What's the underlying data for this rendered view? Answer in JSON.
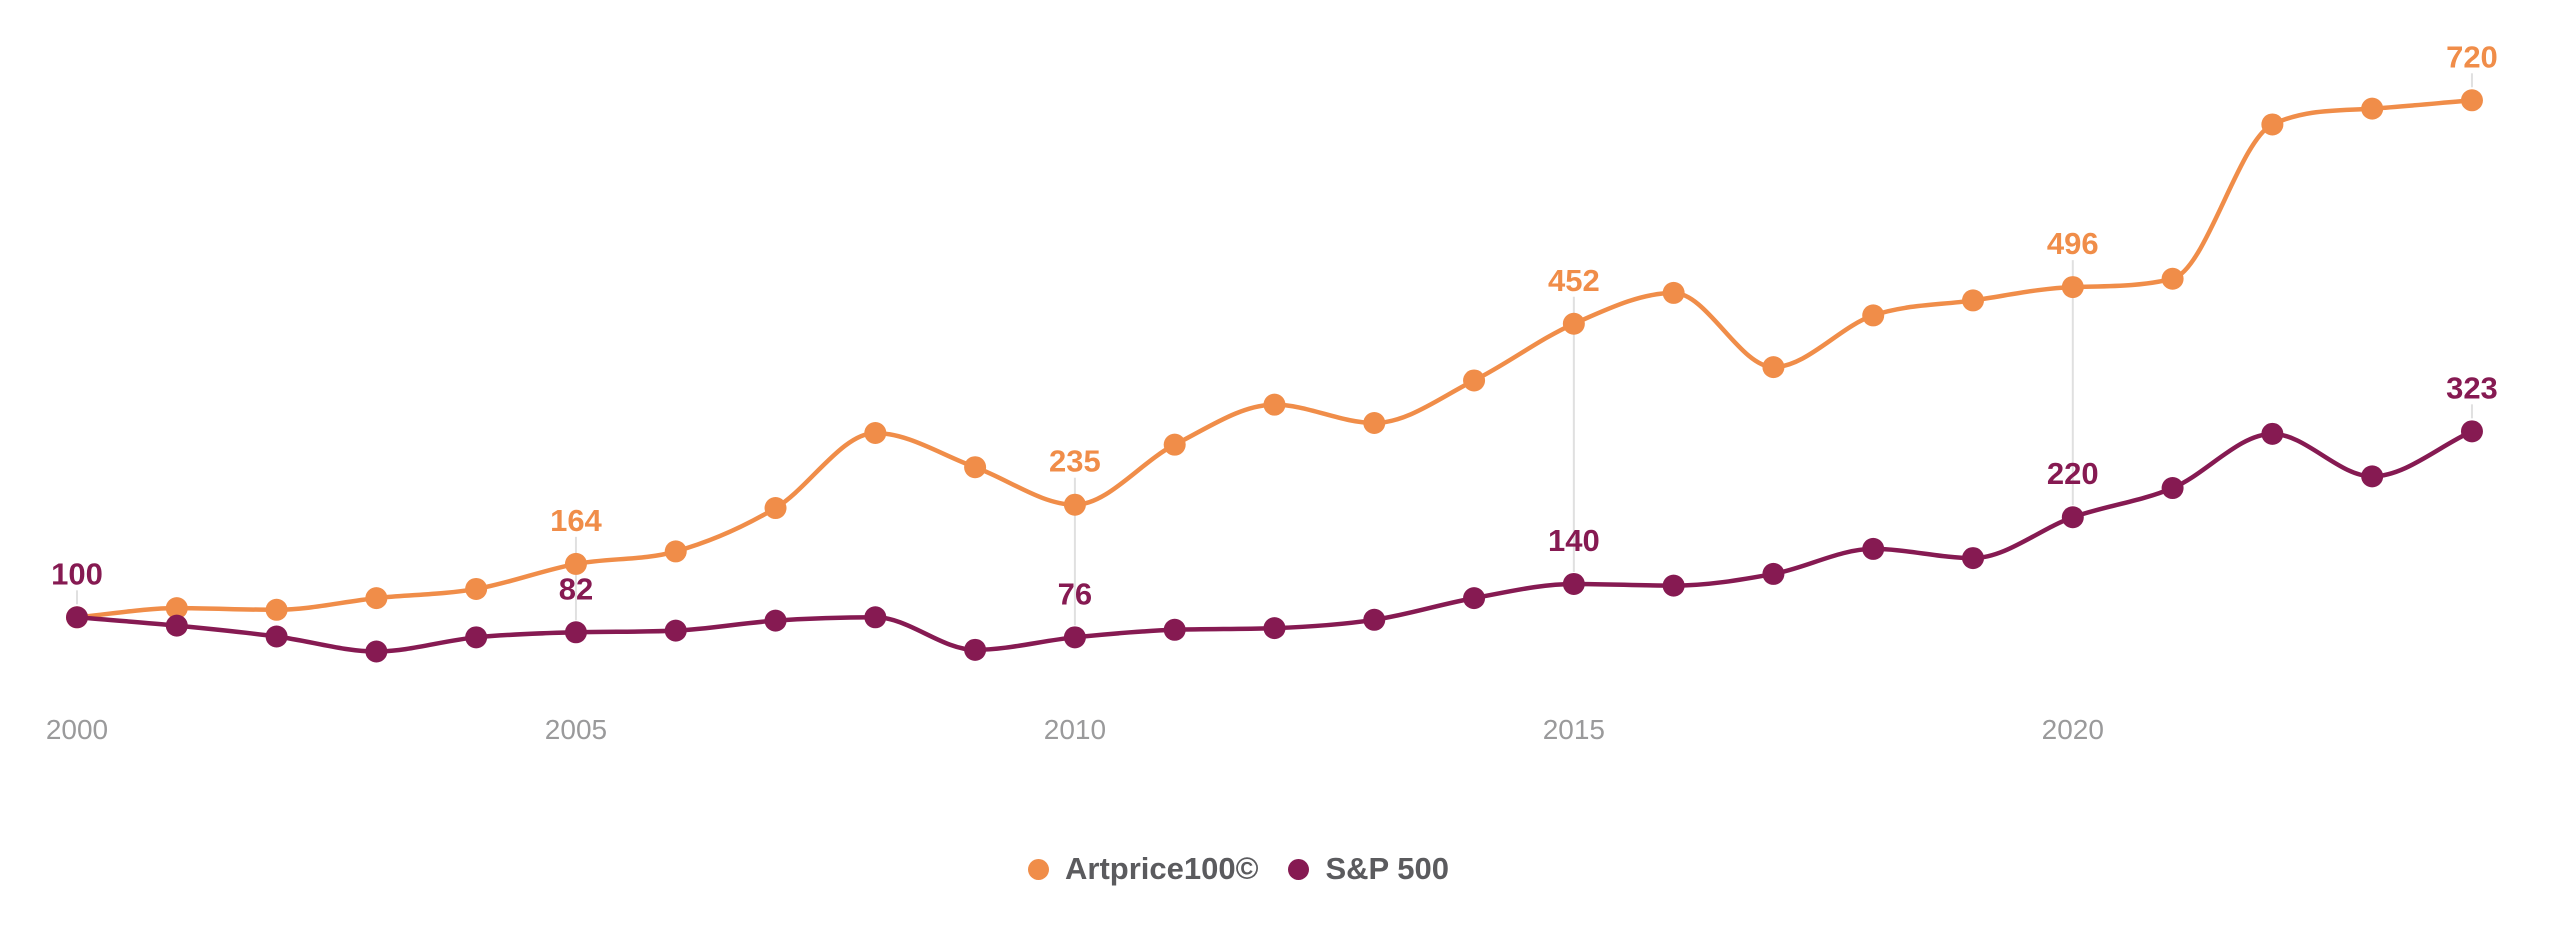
{
  "chart_data": {
    "type": "line",
    "x": [
      2000,
      2001,
      2002,
      2003,
      2004,
      2005,
      2006,
      2007,
      2008,
      2009,
      2010,
      2011,
      2012,
      2013,
      2014,
      2015,
      2016,
      2017,
      2018,
      2019,
      2020,
      2021,
      2022,
      2023,
      2024
    ],
    "series": [
      {
        "name": "Artprice100©",
        "color": "#f08d49",
        "values": [
          100,
          111,
          109,
          123,
          134,
          164,
          179,
          231,
          321,
          280,
          235,
          307,
          355,
          333,
          384,
          452,
          489,
          400,
          462,
          480,
          496,
          506,
          691,
          710,
          720
        ],
        "annotations": [
          {
            "year": 2005,
            "text": "164"
          },
          {
            "year": 2010,
            "text": "235"
          },
          {
            "year": 2015,
            "text": "452"
          },
          {
            "year": 2020,
            "text": "496"
          },
          {
            "year": 2024,
            "text": "720"
          }
        ]
      },
      {
        "name": "S&P 500",
        "color": "#861a52",
        "values": [
          100,
          90,
          77,
          59,
          76,
          82,
          84,
          96,
          100,
          61,
          76,
          85,
          87,
          97,
          123,
          140,
          138,
          152,
          182,
          171,
          220,
          255,
          320,
          269,
          323
        ],
        "annotations": [
          {
            "year": 2000,
            "text": "100"
          },
          {
            "year": 2005,
            "text": "82"
          },
          {
            "year": 2010,
            "text": "76"
          },
          {
            "year": 2015,
            "text": "140"
          },
          {
            "year": 2020,
            "text": "220"
          },
          {
            "year": 2024,
            "text": "323"
          }
        ]
      }
    ],
    "x_axis": {
      "tick_labels": [
        "2000",
        "2005",
        "2010",
        "2015",
        "2020"
      ],
      "tick_years": [
        2000,
        2005,
        2010,
        2015,
        2020
      ],
      "label_color": "#9a9a9b"
    },
    "grid": {
      "vertical_at_years": [
        2005,
        2010,
        2015,
        2020
      ],
      "color": "#e0e0e0"
    },
    "baseline_value": 100,
    "legend_position": "bottom"
  },
  "legend": {
    "items": [
      {
        "label": "Artprice100©",
        "color": "#f08d49"
      },
      {
        "label": "S&P 500",
        "color": "#861a52"
      }
    ]
  }
}
